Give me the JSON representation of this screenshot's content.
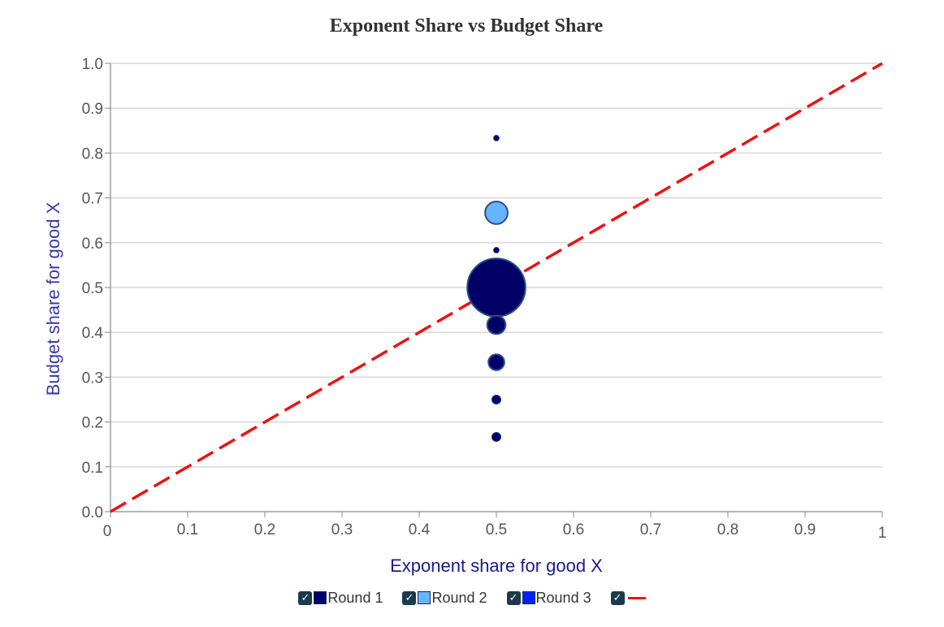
{
  "chart_data": {
    "type": "scatter",
    "title": "Exponent Share vs Budget Share",
    "xlabel": "Exponent share for good X",
    "ylabel": "Budget share for good X",
    "xlim": [
      0,
      1
    ],
    "ylim": [
      0,
      1
    ],
    "x_ticks": [
      "0",
      "0.1",
      "0.2",
      "0.3",
      "0.4",
      "0.5",
      "0.6",
      "0.7",
      "0.8",
      "0.9",
      "1"
    ],
    "y_ticks": [
      "0.0",
      "0.1",
      "0.2",
      "0.3",
      "0.4",
      "0.5",
      "0.6",
      "0.7",
      "0.8",
      "0.9",
      "1.0"
    ],
    "grid": "horizontal",
    "legend_position": "bottom-center",
    "series": [
      {
        "name": "Round 1",
        "color": "#000066",
        "points": [
          {
            "x": 0.5,
            "y": 0.5,
            "size": 20
          },
          {
            "x": 0.5,
            "y": 0.4167,
            "size": 2
          },
          {
            "x": 0.5,
            "y": 0.3333,
            "size": 1.5
          },
          {
            "x": 0.5,
            "y": 0.25,
            "size": 0.5
          },
          {
            "x": 0.5,
            "y": 0.1667,
            "size": 0.5
          },
          {
            "x": 0.5,
            "y": 0.5833,
            "size": 0.2
          },
          {
            "x": 0.5,
            "y": 0.8333,
            "size": 0.2
          }
        ]
      },
      {
        "name": "Round 2",
        "color": "#66b3ff",
        "points": [
          {
            "x": 0.5,
            "y": 0.6667,
            "size": 3
          }
        ]
      },
      {
        "name": "Round 3",
        "color": "#0022ff",
        "points": []
      },
      {
        "name": "",
        "type": "line",
        "style": "dashed",
        "color": "#ee1111",
        "points": [
          {
            "x": 0,
            "y": 0
          },
          {
            "x": 1,
            "y": 1
          }
        ]
      }
    ]
  },
  "legend": {
    "check_glyph": "✓",
    "items": [
      {
        "label": "Round 1",
        "color": "#000066",
        "checked": true
      },
      {
        "label": "Round 2",
        "color": "#66b3ff",
        "checked": true
      },
      {
        "label": "Round 3",
        "color": "#0022ff",
        "checked": true
      },
      {
        "label": "",
        "color": "#ee1111",
        "checked": true
      }
    ]
  }
}
